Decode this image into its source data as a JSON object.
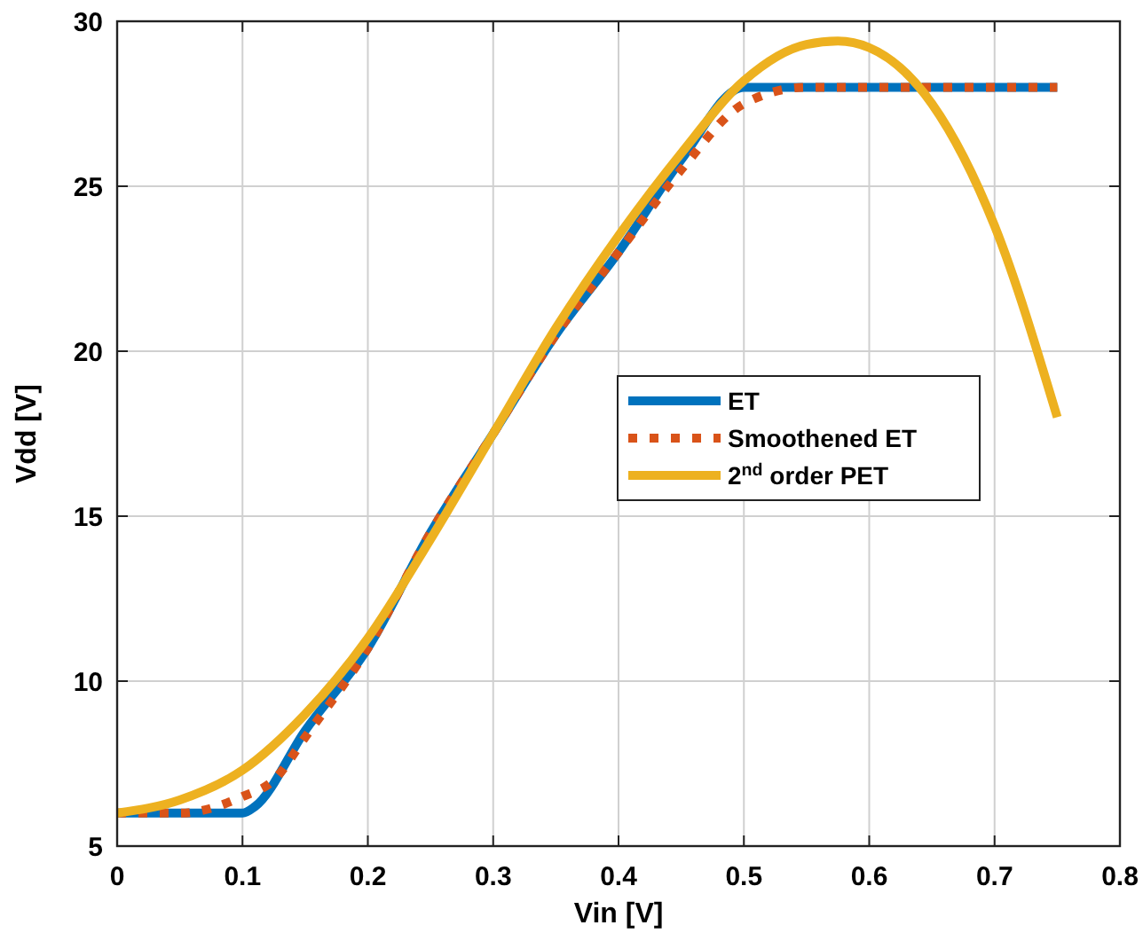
{
  "chart_data": {
    "type": "line",
    "xlabel": "Vin [V]",
    "ylabel": "Vdd [V]",
    "xlim": [
      0,
      0.8
    ],
    "xticks": [
      0,
      0.1,
      0.2,
      0.3,
      0.4,
      0.5,
      0.6,
      0.7,
      0.8
    ],
    "ylim": [
      5,
      30
    ],
    "yticks": [
      5,
      10,
      15,
      20,
      25,
      30
    ],
    "grid": true,
    "legend": "right",
    "series": [
      {
        "name": "ET",
        "color": "#0072bd",
        "line_style": "solid",
        "x": [
          0,
          0.05,
          0.1,
          0.11,
          0.15,
          0.2,
          0.25,
          0.3,
          0.35,
          0.4,
          0.45,
          0.5,
          0.55,
          0.6,
          0.65,
          0.7,
          0.75
        ],
        "values": [
          6,
          6,
          6,
          6.2,
          8.5,
          11,
          14.5,
          17.5,
          20.5,
          23,
          25.8,
          28,
          28,
          28,
          28,
          28,
          28
        ]
      },
      {
        "name": "Smoothened ET",
        "color": "#d95319",
        "line_style": "dotted",
        "x": [
          0,
          0.05,
          0.1,
          0.125,
          0.15,
          0.2,
          0.25,
          0.3,
          0.35,
          0.4,
          0.45,
          0.5,
          0.55,
          0.6,
          0.65,
          0.7,
          0.75
        ],
        "values": [
          6,
          6,
          6.5,
          7,
          8.3,
          11,
          14.5,
          17.5,
          20.5,
          23,
          25.5,
          27.5,
          28,
          28,
          28,
          28,
          28
        ]
      },
      {
        "name": "2$^{nd}$ order PET",
        "color": "#edb120",
        "line_style": "solid",
        "x": [
          0,
          0.05,
          0.1,
          0.15,
          0.2,
          0.25,
          0.3,
          0.35,
          0.4,
          0.45,
          0.5,
          0.55,
          0.575,
          0.6,
          0.65,
          0.7,
          0.75
        ],
        "values": [
          6,
          6.4,
          7.3,
          9,
          11.3,
          14.3,
          17.5,
          20.7,
          23.5,
          26,
          28.2,
          29.3,
          29.4,
          29.2,
          27.5,
          23.8,
          18
        ]
      }
    ]
  }
}
